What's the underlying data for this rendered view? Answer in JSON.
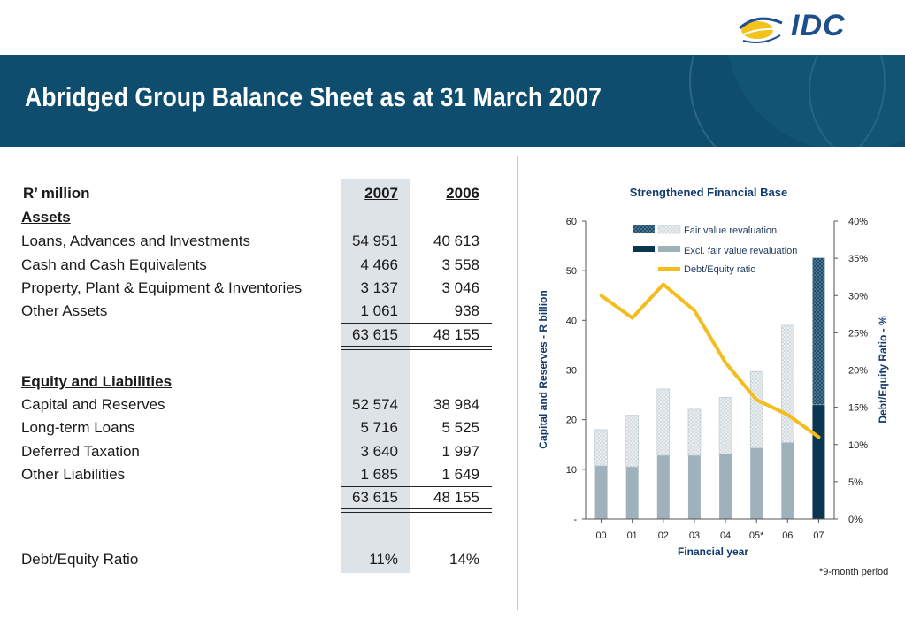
{
  "header": {
    "brand": "IDC",
    "title": "Abridged Group Balance Sheet as at 31 March 2007"
  },
  "table": {
    "unit_label": "R’ million",
    "col_2007": "2007",
    "col_2006": "2006",
    "assets_heading": "Assets",
    "assets": [
      {
        "label": "Loans, Advances and Investments",
        "v2007": "54 951",
        "v2006": "40 613"
      },
      {
        "label": "Cash and Cash Equivalents",
        "v2007": "4 466",
        "v2006": "3 558"
      },
      {
        "label": "Property, Plant & Equipment & Inventories",
        "v2007": "3 137",
        "v2006": "3 046"
      },
      {
        "label": "Other Assets",
        "v2007": "1 061",
        "v2006": "938"
      }
    ],
    "assets_total": {
      "v2007": "63 615",
      "v2006": "48 155"
    },
    "equity_heading": "Equity and Liabilities",
    "equity": [
      {
        "label": "Capital and Reserves",
        "v2007": "52 574",
        "v2006": "38 984"
      },
      {
        "label": "Long-term Loans",
        "v2007": "5 716",
        "v2006": "5 525"
      },
      {
        "label": "Deferred Taxation",
        "v2007": "3 640",
        "v2006": "1 997"
      },
      {
        "label": "Other Liabilities",
        "v2007": "1 685",
        "v2006": "1 649"
      }
    ],
    "equity_total": {
      "v2007": "63 615",
      "v2006": "48 155"
    },
    "ratio": {
      "label": "Debt/Equity Ratio",
      "v2007": "11%",
      "v2006": "14%"
    }
  },
  "chart_data": {
    "type": "bar",
    "title": "Strengthened Financial Base",
    "xlabel": "Financial year",
    "ylabel": "Capital and Reserves - R billion",
    "y2label": "Debt/Equity Ratio - %",
    "categories": [
      "00",
      "01",
      "02",
      "03",
      "04",
      "05*",
      "06",
      "07"
    ],
    "ylim": [
      0,
      60
    ],
    "yticks": [
      "-",
      "10",
      "20",
      "30",
      "40",
      "50",
      "60"
    ],
    "y2lim": [
      0,
      40
    ],
    "y2ticks": [
      "0%",
      "5%",
      "10%",
      "15%",
      "20%",
      "25%",
      "30%",
      "35%",
      "40%"
    ],
    "stacked": true,
    "series": [
      {
        "name": "Excl. fair value revaluation",
        "type": "bar",
        "axis": "left",
        "values": [
          10.7,
          10.5,
          12.8,
          12.8,
          13.1,
          14.3,
          15.4,
          23.0
        ]
      },
      {
        "name": "Fair value revaluation",
        "type": "bar",
        "axis": "left",
        "values": [
          7.3,
          10.4,
          13.4,
          9.3,
          11.4,
          15.4,
          23.6,
          29.6
        ]
      },
      {
        "name": "Debt/Equity ratio",
        "type": "line",
        "axis": "right",
        "values": [
          30,
          27,
          31.5,
          28,
          21,
          16,
          14,
          11
        ]
      }
    ],
    "legend_position": "top-right",
    "colors": {
      "excl": "#9fb2bb",
      "fair": "#e2e7ea",
      "latest": "#0b3550",
      "line": "#f4bd1d"
    },
    "footnote": "*9-month period"
  }
}
